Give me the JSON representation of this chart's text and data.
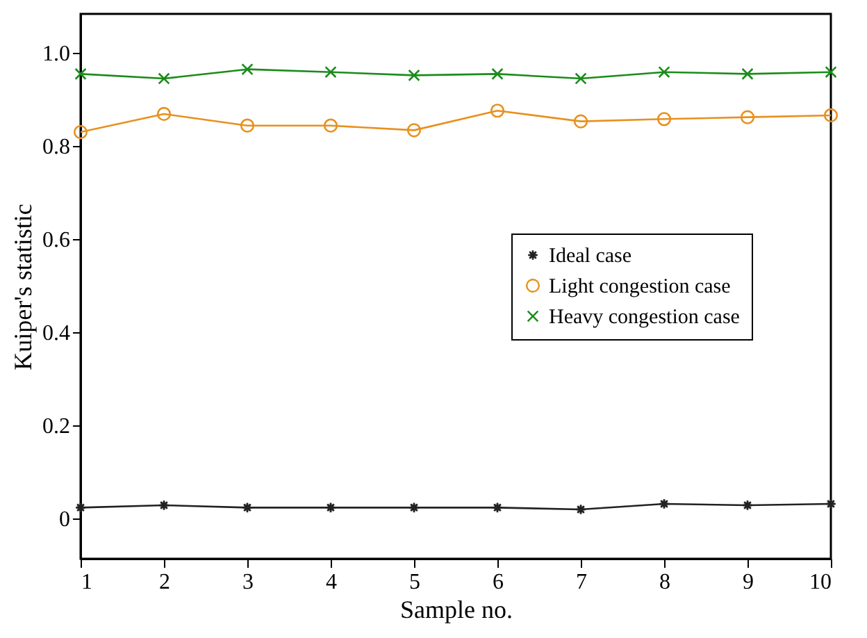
{
  "chart_data": {
    "type": "line",
    "xlabel": "Sample no.",
    "ylabel": "Kuiper's statistic",
    "x": [
      1,
      2,
      3,
      4,
      5,
      6,
      7,
      8,
      9,
      10
    ],
    "xlim": [
      1,
      10
    ],
    "xticks": [
      1,
      2,
      3,
      4,
      5,
      6,
      7,
      8,
      9,
      10
    ],
    "ylim": [
      -0.087,
      1.084
    ],
    "yticks": [
      {
        "value": 0,
        "label": "0"
      },
      0.2,
      0.4,
      0.6,
      0.8,
      {
        "value": 1.0,
        "label": "1.0"
      }
    ],
    "grid": false,
    "legend": "right",
    "line_style": "solid",
    "series": [
      {
        "name": "Ideal case",
        "color": "#222222",
        "marker": "star",
        "values": [
          0.023,
          0.028,
          0.023,
          0.023,
          0.023,
          0.023,
          0.019,
          0.031,
          0.028,
          0.031
        ]
      },
      {
        "name": "Light congestion case",
        "color": "#e8901e",
        "marker": "circle",
        "values": [
          0.83,
          0.869,
          0.844,
          0.844,
          0.834,
          0.876,
          0.853,
          0.858,
          0.862,
          0.866
        ]
      },
      {
        "name": "Heavy congestion case",
        "color": "#1a8c1a",
        "marker": "cross",
        "values": [
          0.955,
          0.945,
          0.965,
          0.959,
          0.952,
          0.955,
          0.945,
          0.959,
          0.955,
          0.959
        ]
      }
    ]
  }
}
